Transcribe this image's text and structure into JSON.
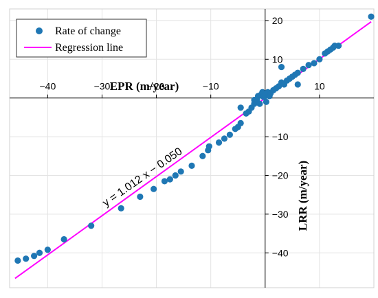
{
  "chart_data": {
    "type": "scatter",
    "xlabel": "EPR (m/year)",
    "ylabel": "LRR (m/year)",
    "xlim": [
      -47,
      20
    ],
    "ylim": [
      -49,
      23
    ],
    "xticks": [
      -40,
      -30,
      -20,
      -10,
      10
    ],
    "xtick_labels": [
      "−40",
      "−30",
      "−20",
      "−10",
      "10"
    ],
    "yticks": [
      20,
      10,
      -10,
      -20,
      -30,
      -40
    ],
    "ytick_labels": [
      "20",
      "10",
      "−10",
      "−20",
      "−30",
      "−40"
    ],
    "grid": true,
    "legend_position": "top-left",
    "series": [
      {
        "name": "Rate of change",
        "marker": "circle",
        "color": "#1f77b4",
        "points": [
          [
            -45.5,
            -42.0
          ],
          [
            -44.0,
            -41.5
          ],
          [
            -42.5,
            -40.8
          ],
          [
            -41.5,
            -40.0
          ],
          [
            -40.0,
            -39.2
          ],
          [
            -37.0,
            -36.5
          ],
          [
            -32.0,
            -33.0
          ],
          [
            -26.5,
            -28.5
          ],
          [
            -23.0,
            -25.5
          ],
          [
            -20.5,
            -23.5
          ],
          [
            -18.5,
            -21.5
          ],
          [
            -17.5,
            -21.0
          ],
          [
            -16.5,
            -20.0
          ],
          [
            -15.5,
            -19.0
          ],
          [
            -13.5,
            -17.5
          ],
          [
            -11.5,
            -15.0
          ],
          [
            -10.5,
            -13.5
          ],
          [
            -10.3,
            -12.5
          ],
          [
            -8.5,
            -11.5
          ],
          [
            -7.5,
            -10.5
          ],
          [
            -6.5,
            -9.5
          ],
          [
            -5.5,
            -8.0
          ],
          [
            -5.0,
            -7.5
          ],
          [
            -4.5,
            -6.5
          ],
          [
            -4.5,
            -2.5
          ],
          [
            -3.5,
            -4.0
          ],
          [
            -3.0,
            -3.5
          ],
          [
            -2.5,
            -2.5
          ],
          [
            -2.0,
            -1.5
          ],
          [
            -2.0,
            -0.5
          ],
          [
            -1.5,
            -0.3
          ],
          [
            -1.3,
            0.5
          ],
          [
            -1.0,
            -1.5
          ],
          [
            -0.8,
            0.8
          ],
          [
            -0.5,
            1.5
          ],
          [
            -0.3,
            0.3
          ],
          [
            0.0,
            0.5
          ],
          [
            0.2,
            -1.0
          ],
          [
            0.5,
            1.5
          ],
          [
            0.8,
            0.5
          ],
          [
            1.0,
            1.2
          ],
          [
            1.5,
            2.0
          ],
          [
            2.0,
            2.5
          ],
          [
            2.5,
            3.0
          ],
          [
            3.0,
            4.0
          ],
          [
            3.0,
            8.0
          ],
          [
            3.5,
            3.5
          ],
          [
            4.0,
            4.5
          ],
          [
            4.5,
            5.0
          ],
          [
            5.0,
            5.5
          ],
          [
            5.5,
            6.0
          ],
          [
            6.0,
            6.5
          ],
          [
            6.0,
            3.5
          ],
          [
            7.0,
            7.5
          ],
          [
            8.0,
            8.5
          ],
          [
            9.0,
            9.0
          ],
          [
            10.0,
            10.0
          ],
          [
            11.0,
            11.5
          ],
          [
            11.5,
            12.0
          ],
          [
            12.0,
            12.5
          ],
          [
            12.5,
            13.0
          ],
          [
            12.8,
            13.5
          ],
          [
            13.5,
            13.5
          ],
          [
            19.5,
            21.0
          ]
        ]
      },
      {
        "name": "Regression line",
        "color": "#ff00ff",
        "slope": 1.012,
        "intercept": -0.05,
        "x_range": [
          -46,
          19.5
        ]
      }
    ],
    "annotation": "y = 1.012 x − 0.050"
  }
}
